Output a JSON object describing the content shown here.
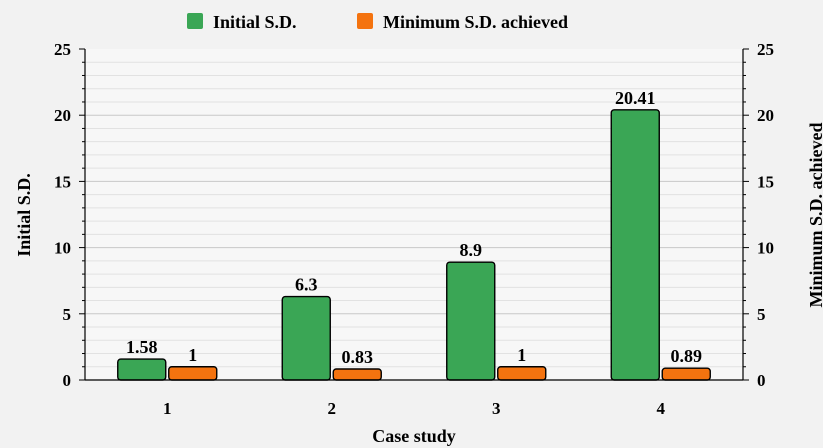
{
  "chart_data": {
    "type": "bar",
    "xlabel": "Case study",
    "ylabel": "Initial S.D.",
    "y2label": "Minimum S.D. achieved",
    "categories": [
      "1",
      "2",
      "3",
      "4"
    ],
    "ylim": [
      0,
      25
    ],
    "y_ticks": [
      "0",
      "5",
      "10",
      "15",
      "20",
      "25"
    ],
    "grid": true,
    "legend_position": "top",
    "series": [
      {
        "name": "Initial S.D.",
        "values": [
          1.58,
          6.3,
          8.9,
          20.41
        ],
        "labels": [
          "1.58",
          "6.3",
          "8.9",
          "20.41"
        ],
        "color": "#3aa655"
      },
      {
        "name": "Minimum S.D. achieved",
        "values": [
          1,
          0.83,
          1,
          0.89
        ],
        "labels": [
          "1",
          "0.83",
          "1",
          "0.89"
        ],
        "color": "#f4730f"
      }
    ]
  }
}
